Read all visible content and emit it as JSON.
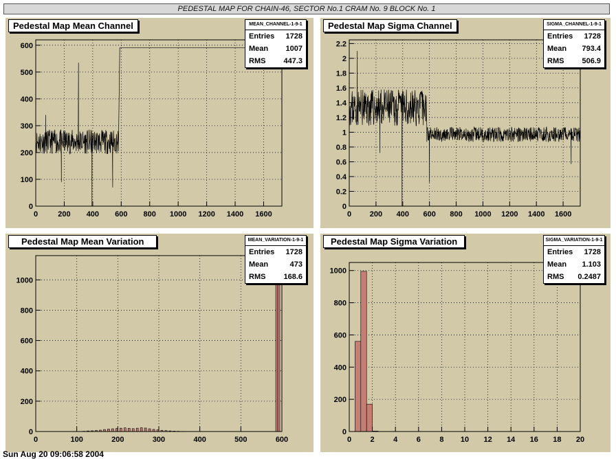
{
  "banner": "PEDESTAL MAP FOR CHAIN-46, SECTOR No.1 CRAM No. 9 BLOCK No. 1",
  "footer": "Sun Aug 20 09:06:58 2004",
  "chart_data": [
    {
      "type": "line",
      "title": "Pedestal Map Mean Channel",
      "stats_name": "MEAN_CHANNEL-1-9-1",
      "stats": {
        "entries": "1728",
        "mean": "1007",
        "rms": "447.3"
      },
      "xlim": [
        0,
        1728
      ],
      "ylim": [
        0,
        620
      ],
      "xticks": [
        0,
        200,
        400,
        600,
        800,
        1000,
        1200,
        1400,
        1600
      ],
      "yticks": [
        0,
        100,
        200,
        300,
        400,
        500,
        600
      ],
      "grid": true,
      "segments": [
        {
          "x_start": 0,
          "x_end": 580,
          "level": 240,
          "noise": 45,
          "seed": 11
        },
        {
          "x_start": 590,
          "x_end": 1728,
          "level": 590,
          "noise": 0,
          "seed": 0
        }
      ],
      "spikes": [
        {
          "x": 300,
          "y": 535
        },
        {
          "x": 395,
          "y": 0
        },
        {
          "x": 540,
          "y": 70
        },
        {
          "x": 180,
          "y": 90
        },
        {
          "x": 70,
          "y": 340
        }
      ]
    },
    {
      "type": "line",
      "title": "Pedestal Map Sigma Channel",
      "stats_name": "SIGMA_CHANNEL-1-9-1",
      "stats": {
        "entries": "1728",
        "mean": "793.4",
        "rms": "506.9"
      },
      "xlim": [
        0,
        1728
      ],
      "ylim": [
        0,
        2.25
      ],
      "xticks": [
        0,
        200,
        400,
        600,
        800,
        1000,
        1200,
        1400,
        1600
      ],
      "yticks": [
        0,
        0.2,
        0.4,
        0.6,
        0.8,
        1,
        1.2,
        1.4,
        1.6,
        1.8,
        2,
        2.2
      ],
      "grid": true,
      "segments": [
        {
          "x_start": 0,
          "x_end": 580,
          "level": 1.33,
          "noise": 0.25,
          "seed": 23
        },
        {
          "x_start": 580,
          "x_end": 1728,
          "level": 0.97,
          "noise": 0.1,
          "seed": 37
        }
      ],
      "spikes": [
        {
          "x": 395,
          "y": 0
        },
        {
          "x": 600,
          "y": 0.32
        },
        {
          "x": 230,
          "y": 0.72
        },
        {
          "x": 60,
          "y": 2.1
        },
        {
          "x": 1660,
          "y": 0.57
        }
      ]
    },
    {
      "type": "bar",
      "title": "Pedestal Map Mean Variation",
      "stats_name": "MEAN_VARIATION-1-9-1",
      "stats": {
        "entries": "1728",
        "mean": "473",
        "rms": "168.6"
      },
      "xlim": [
        0,
        600
      ],
      "ylim": [
        0,
        1160
      ],
      "xticks": [
        0,
        100,
        200,
        300,
        400,
        500,
        600
      ],
      "yticks": [
        0,
        200,
        400,
        600,
        800,
        1000
      ],
      "grid": true,
      "bin_width": 5,
      "bins": [
        {
          "x": 115,
          "y": 2
        },
        {
          "x": 125,
          "y": 4
        },
        {
          "x": 135,
          "y": 5
        },
        {
          "x": 145,
          "y": 7
        },
        {
          "x": 155,
          "y": 9
        },
        {
          "x": 165,
          "y": 13
        },
        {
          "x": 175,
          "y": 16
        },
        {
          "x": 185,
          "y": 18
        },
        {
          "x": 195,
          "y": 20
        },
        {
          "x": 205,
          "y": 22
        },
        {
          "x": 215,
          "y": 24
        },
        {
          "x": 225,
          "y": 21
        },
        {
          "x": 235,
          "y": 19
        },
        {
          "x": 245,
          "y": 22
        },
        {
          "x": 255,
          "y": 25
        },
        {
          "x": 265,
          "y": 23
        },
        {
          "x": 275,
          "y": 18
        },
        {
          "x": 285,
          "y": 14
        },
        {
          "x": 295,
          "y": 11
        },
        {
          "x": 305,
          "y": 8
        },
        {
          "x": 315,
          "y": 6
        },
        {
          "x": 325,
          "y": 4
        },
        {
          "x": 335,
          "y": 3
        },
        {
          "x": 345,
          "y": 2
        },
        {
          "x": 355,
          "y": 1
        },
        {
          "x": 585,
          "y": 1090
        },
        {
          "x": 590,
          "y": 1100
        }
      ]
    },
    {
      "type": "bar",
      "title": "Pedestal Map Sigma Variation",
      "stats_name": "SIGMA_VARIATION-1-9-1",
      "stats": {
        "entries": "1728",
        "mean": "1.103",
        "rms": "0.2487"
      },
      "xlim": [
        0,
        20
      ],
      "ylim": [
        0,
        1050
      ],
      "xticks": [
        0,
        2,
        4,
        6,
        8,
        10,
        12,
        14,
        16,
        18,
        20
      ],
      "yticks": [
        0,
        200,
        400,
        600,
        800,
        1000
      ],
      "grid": true,
      "bin_width": 0.5,
      "bins": [
        {
          "x": 0.5,
          "y": 560
        },
        {
          "x": 1.0,
          "y": 995
        },
        {
          "x": 1.5,
          "y": 170
        },
        {
          "x": 2.0,
          "y": 3
        }
      ]
    }
  ]
}
